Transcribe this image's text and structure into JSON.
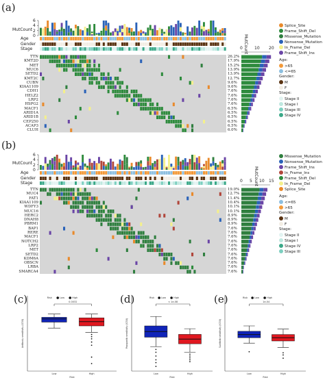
{
  "colors": {
    "Splice_Site": "#e98a2b",
    "Frame_Shift_Del": "#2e8b3d",
    "Missense_Mutation": "#2f7f3f",
    "Nonsense_Mutation": "#2a62b8",
    "In_Frame_Del": "#f4f08c",
    "Frame_Shift_Ins": "#6a45a6",
    "In_Frame_Ins": "#b0453a",
    "age_old": "#f29a3a",
    "age_young": "#8dbfe0",
    "gender_M": "#5a3413",
    "gender_F": "#f2ede4",
    "stage_II": "#e2f3f1",
    "stage_I": "#bfe8e0",
    "stage_III": "#7dcfc0",
    "stage_IV": "#3aa888",
    "grid": "#d6d6d6",
    "box_low": "#1024b8",
    "box_high": "#e01820"
  },
  "panel_a": {
    "letter": "(a)",
    "mutcount_label": "MutCount",
    "mutcount_ticks": [
      "6",
      "4",
      "2",
      "0"
    ],
    "side_axis_label": "MutCount",
    "side_ticks": [
      "0",
      "10",
      "20"
    ],
    "track_labels": [
      "Age",
      "Gender",
      "Stage"
    ],
    "genes": [
      "TTN",
      "KMT2D",
      "MET",
      "MUC6",
      "SETD2",
      "KMT2C",
      "CUBN",
      "KIAA1109",
      "CDH1",
      "HELZ2",
      "LRP2",
      "HSPG2",
      "MACF1",
      "ARID1A",
      "ARID1B",
      "CEP250",
      "ACAP3",
      "CLUH"
    ],
    "percents": [
      "26.2%",
      "17.9%",
      "15.2%",
      "13.9%",
      "13.9%",
      "12.7%",
      "9.6%",
      "9.6%",
      "7.6%",
      "7.6%",
      "7.6%",
      "7.6%",
      "6.5%",
      "6.5%",
      "6.5%",
      "6.5%",
      "6.5%",
      "6.0%"
    ],
    "legend_mut": [
      "Splice_Site",
      "Frame_Shift_Del",
      "Missense_Mutation",
      "Nonsense_Mutation",
      "In_Frame_Del",
      "Frame_Shift_Ins"
    ],
    "legend_age_title": "Age:",
    "legend_age": [
      ">65",
      "<=65"
    ],
    "legend_gender_title": "Gender:",
    "legend_gender": [
      "M",
      "F"
    ],
    "legend_stage_title": "Stage:",
    "legend_stage": [
      "Stage II",
      "Stage I",
      "Stage III",
      "Stage IV"
    ]
  },
  "panel_b": {
    "letter": "(b)",
    "mutcount_label": "MutCount",
    "mutcount_ticks": [
      "6",
      "4",
      "2",
      "0"
    ],
    "side_axis_label": "MutCount",
    "side_ticks": [
      "0",
      "5",
      "10",
      "15"
    ],
    "track_labels": [
      "Age",
      "Gender",
      "Stage"
    ],
    "genes": [
      "TTN",
      "MUC4",
      "FAT1",
      "KIAA1109",
      "WDFY3",
      "MUC16",
      "HERC2",
      "DNAH8",
      "PBRM1",
      "BAP1",
      "RERE",
      "MACF1",
      "NOTCH2",
      "LRP2",
      "MET",
      "SETD2",
      "KDM6A",
      "OBSCN",
      "LRBA",
      "SMARCA4"
    ],
    "percents": [
      "19.0%",
      "12.7%",
      "11.4%",
      "10.4%",
      "10.1%",
      "10.1%",
      "8.9%",
      "8.9%",
      "8.9%",
      "7.6%",
      "7.6%",
      "7.6%",
      "7.6%",
      "7.6%",
      "7.6%",
      "7.6%",
      "7.6%",
      "7.6%",
      "7.6%",
      "7.6%"
    ],
    "legend_mut": [
      "Missense_Mutation",
      "Nonsense_Mutation",
      "Frame_Shift_Ins",
      "In_Frame_Ins",
      "Frame_Shift_Del",
      "In_Frame_Del",
      "Splice_Site"
    ],
    "legend_age_title": "Age:",
    "legend_age": [
      "<=65",
      ">65"
    ],
    "legend_gender_title": "Gender:",
    "legend_gender": [
      "M",
      "F"
    ],
    "legend_stage_title": "Stage:",
    "legend_stage": [
      "Stage II",
      "Stage I",
      "Stage IV",
      "Stage III"
    ]
  },
  "chart_data": [
    {
      "type": "box",
      "panel": "(c)",
      "title": "",
      "legend_title": "Risk",
      "legend": [
        "Low",
        "High"
      ],
      "categories": [
        "Low",
        "High"
      ],
      "xlabel": "Risk",
      "ylabel": "Antibody sensitivity (IC50)",
      "pvalue": "0.0032",
      "boxes": [
        {
          "name": "Low",
          "q1": 6.55,
          "median": 6.85,
          "q3": 7.0,
          "whisker_low": 6.0,
          "whisker_high": 7.3,
          "outliers": []
        },
        {
          "name": "High",
          "q1": 6.2,
          "median": 6.6,
          "q3": 6.95,
          "whisker_low": 5.6,
          "whisker_high": 7.3,
          "outliers": [
            5.4,
            5.2,
            5.0,
            4.7,
            4.4,
            3.3,
            2.7
          ]
        }
      ],
      "ylim": [
        2,
        9
      ]
    },
    {
      "type": "box",
      "panel": "(d)",
      "title": "",
      "legend_title": "Risk",
      "legend": [
        "Low",
        "High"
      ],
      "categories": [
        "Low",
        "High"
      ],
      "xlabel": "Risk",
      "ylabel": "Pazopanib sensitivity (IC50)",
      "pvalue": "< 1e-08",
      "boxes": [
        {
          "name": "Low",
          "q1": 4.6,
          "median": 5.2,
          "q3": 5.8,
          "whisker_low": 3.6,
          "whisker_high": 6.8,
          "outliers": [
            3.3,
            3.0,
            2.6,
            2.2,
            1.9,
            1.5
          ]
        },
        {
          "name": "High",
          "q1": 3.9,
          "median": 4.4,
          "q3": 4.9,
          "whisker_low": 3.0,
          "whisker_high": 5.5,
          "outliers": [
            2.8,
            2.6,
            2.4,
            2.2,
            2.0
          ]
        }
      ],
      "ylim": [
        1,
        9
      ]
    },
    {
      "type": "box",
      "panel": "(e)",
      "title": "",
      "legend_title": "Risk",
      "legend": [
        "Low",
        "High"
      ],
      "categories": [
        "Low",
        "High"
      ],
      "xlabel": "Risk",
      "ylabel": "Sunitinib sensitivity (IC50)",
      "pvalue": "1e-04",
      "boxes": [
        {
          "name": "Low",
          "q1": 3.1,
          "median": 3.4,
          "q3": 3.7,
          "whisker_low": 2.6,
          "whisker_high": 4.2,
          "outliers": [
            1.8
          ]
        },
        {
          "name": "High",
          "q1": 2.8,
          "median": 3.1,
          "q3": 3.4,
          "whisker_low": 2.2,
          "whisker_high": 3.9,
          "outliers": [
            1.7,
            1.5,
            1.2
          ]
        }
      ],
      "ylim": [
        0,
        7
      ]
    }
  ]
}
